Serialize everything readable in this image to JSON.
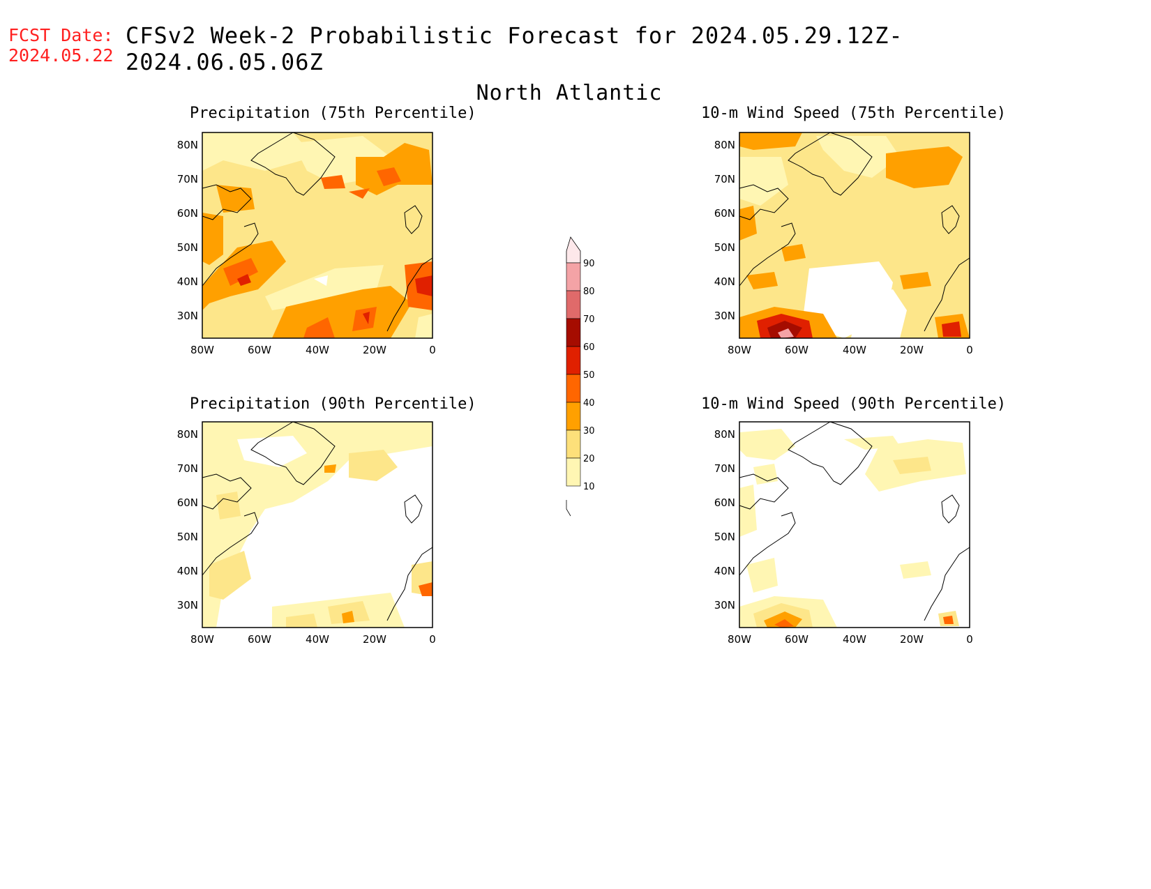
{
  "header": {
    "fcst_label": "FCST Date:",
    "fcst_date": "2024.05.22",
    "title": "CFSv2 Week-2 Probabilistic Forecast for 2024.05.29.12Z-2024.06.05.06Z",
    "subtitle": "North Atlantic"
  },
  "panels": [
    {
      "title": "Precipitation (75th Percentile)"
    },
    {
      "title": "10-m Wind Speed (75th Percentile)"
    },
    {
      "title": "Precipitation (90th Percentile)"
    },
    {
      "title": "10-m Wind Speed (90th Percentile)"
    }
  ],
  "axes": {
    "lon_ticks": [
      "80W",
      "60W",
      "40W",
      "20W",
      "0"
    ],
    "lat_ticks": [
      "80N",
      "70N",
      "60N",
      "50N",
      "40N",
      "30N"
    ],
    "lon_range": [
      -80,
      0
    ],
    "lat_range": [
      25,
      85
    ]
  },
  "colorbar": {
    "levels": [
      "90",
      "80",
      "70",
      "60",
      "50",
      "40",
      "30",
      "20",
      "10"
    ],
    "colors": [
      "#fde8ea",
      "#f4a3a6",
      "#e06a6a",
      "#a50c00",
      "#e02000",
      "#ff6600",
      "#ffa000",
      "#fde07a",
      "#fff6b3"
    ]
  }
}
